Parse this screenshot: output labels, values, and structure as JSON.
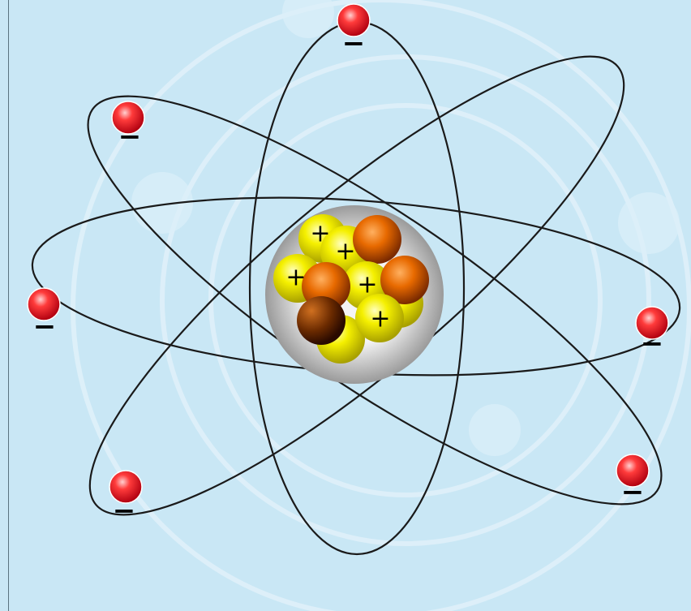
{
  "nucleus": {
    "protons": [
      {
        "label": "+"
      },
      {
        "label": "+"
      },
      {
        "label": "+"
      },
      {
        "label": "+"
      },
      {
        "label": "+"
      }
    ]
  },
  "electrons": [
    {
      "label": "−"
    },
    {
      "label": "−"
    },
    {
      "label": "−"
    },
    {
      "label": "−"
    },
    {
      "label": "−"
    },
    {
      "label": "−"
    }
  ]
}
